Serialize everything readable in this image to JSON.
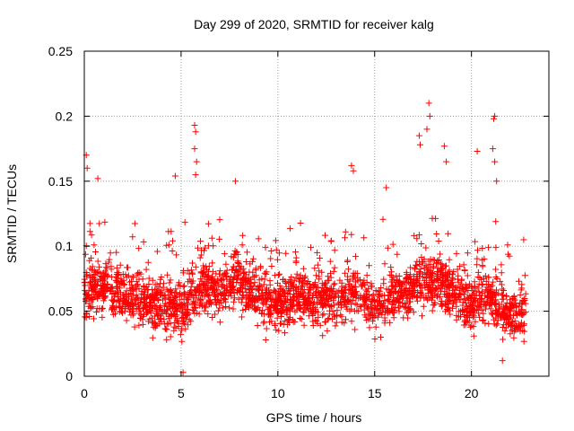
{
  "chart_data": {
    "type": "scatter",
    "title": "Day 299 of 2020, SRMTID for receiver kalg",
    "xlabel": "GPS time / hours",
    "ylabel": "SRMTID / TECUs",
    "xlim": [
      0,
      24
    ],
    "ylim": [
      0,
      0.25
    ],
    "xticks": [
      0,
      5,
      10,
      15,
      20
    ],
    "xtick_labels": [
      "0",
      "5",
      "10",
      "15",
      "20"
    ],
    "yticks": [
      0,
      0.05,
      0.1,
      0.15,
      0.2,
      0.25
    ],
    "ytick_labels": [
      "0",
      "0.05",
      "0.1",
      "0.15",
      "0.2",
      "0.25"
    ],
    "grid": true,
    "marker": "+",
    "color": "#ff0000",
    "point_count": 2600,
    "x_extent": [
      0,
      22.8
    ],
    "y_extent": [
      0.003,
      0.21
    ],
    "typical_range": [
      0.03,
      0.1
    ],
    "series_profile": [
      {
        "x": 0.0,
        "center": 0.065
      },
      {
        "x": 1.0,
        "center": 0.07
      },
      {
        "x": 2.0,
        "center": 0.063
      },
      {
        "x": 3.0,
        "center": 0.058
      },
      {
        "x": 4.0,
        "center": 0.055
      },
      {
        "x": 5.0,
        "center": 0.05
      },
      {
        "x": 6.0,
        "center": 0.07
      },
      {
        "x": 7.0,
        "center": 0.065
      },
      {
        "x": 8.0,
        "center": 0.075
      },
      {
        "x": 9.0,
        "center": 0.06
      },
      {
        "x": 10.0,
        "center": 0.055
      },
      {
        "x": 11.0,
        "center": 0.062
      },
      {
        "x": 12.0,
        "center": 0.06
      },
      {
        "x": 13.0,
        "center": 0.058
      },
      {
        "x": 14.0,
        "center": 0.065
      },
      {
        "x": 15.0,
        "center": 0.055
      },
      {
        "x": 16.0,
        "center": 0.06
      },
      {
        "x": 17.0,
        "center": 0.07
      },
      {
        "x": 18.0,
        "center": 0.075
      },
      {
        "x": 19.0,
        "center": 0.065
      },
      {
        "x": 20.0,
        "center": 0.055
      },
      {
        "x": 21.0,
        "center": 0.06
      },
      {
        "x": 22.0,
        "center": 0.045
      },
      {
        "x": 22.8,
        "center": 0.05
      }
    ],
    "notable_points": [
      {
        "x": 0.1,
        "y": 0.17
      },
      {
        "x": 0.15,
        "y": 0.16
      },
      {
        "x": 0.7,
        "y": 0.152
      },
      {
        "x": 4.7,
        "y": 0.154
      },
      {
        "x": 5.1,
        "y": 0.003
      },
      {
        "x": 5.7,
        "y": 0.193
      },
      {
        "x": 5.75,
        "y": 0.188
      },
      {
        "x": 5.7,
        "y": 0.175
      },
      {
        "x": 5.8,
        "y": 0.165
      },
      {
        "x": 5.75,
        "y": 0.155
      },
      {
        "x": 7.8,
        "y": 0.15
      },
      {
        "x": 13.8,
        "y": 0.162
      },
      {
        "x": 13.9,
        "y": 0.158
      },
      {
        "x": 15.6,
        "y": 0.145
      },
      {
        "x": 17.3,
        "y": 0.185
      },
      {
        "x": 17.35,
        "y": 0.178
      },
      {
        "x": 17.8,
        "y": 0.21
      },
      {
        "x": 17.85,
        "y": 0.2
      },
      {
        "x": 17.7,
        "y": 0.19
      },
      {
        "x": 18.6,
        "y": 0.177
      },
      {
        "x": 18.7,
        "y": 0.165
      },
      {
        "x": 20.3,
        "y": 0.173
      },
      {
        "x": 21.2,
        "y": 0.2
      },
      {
        "x": 21.15,
        "y": 0.198
      },
      {
        "x": 21.1,
        "y": 0.175
      },
      {
        "x": 21.2,
        "y": 0.165
      },
      {
        "x": 21.3,
        "y": 0.15
      },
      {
        "x": 21.6,
        "y": 0.012
      },
      {
        "x": 22.7,
        "y": 0.105
      }
    ]
  }
}
